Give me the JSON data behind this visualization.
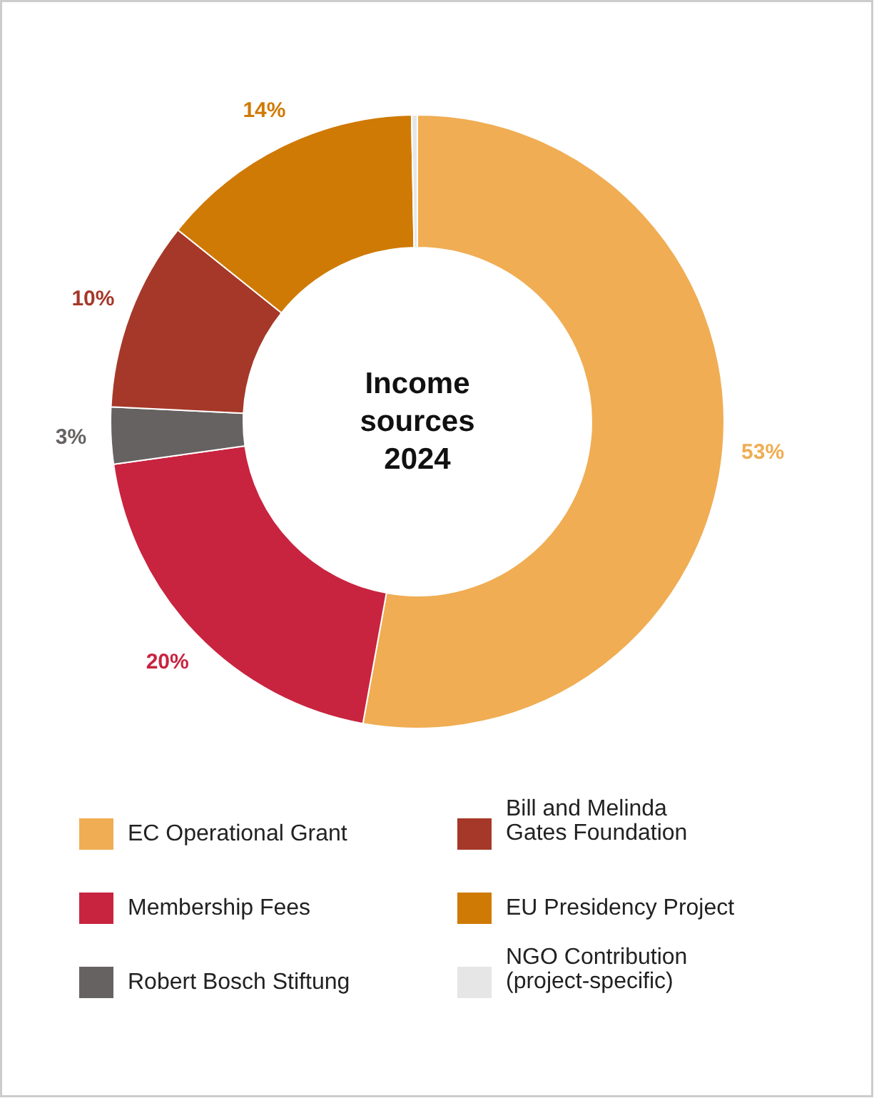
{
  "chart_data": {
    "type": "donut",
    "title": "Income sources 2024",
    "categories": [
      "EC Operational Grant",
      "Membership Fees",
      "Robert Bosch Stiftung",
      "Bill and Melinda Gates Foundation",
      "EU Presidency Project",
      "NGO Contribution (project-specific)"
    ],
    "values": [
      53,
      20,
      3,
      10,
      14,
      0.3
    ],
    "colors": [
      "#f0ad53",
      "#c8243f",
      "#676262",
      "#a53829",
      "#cf7a04",
      "#e6e6e6"
    ],
    "value_labels": [
      "53%",
      "20%",
      "3%",
      "10%",
      "14%",
      null
    ],
    "legend": "bottom"
  }
}
